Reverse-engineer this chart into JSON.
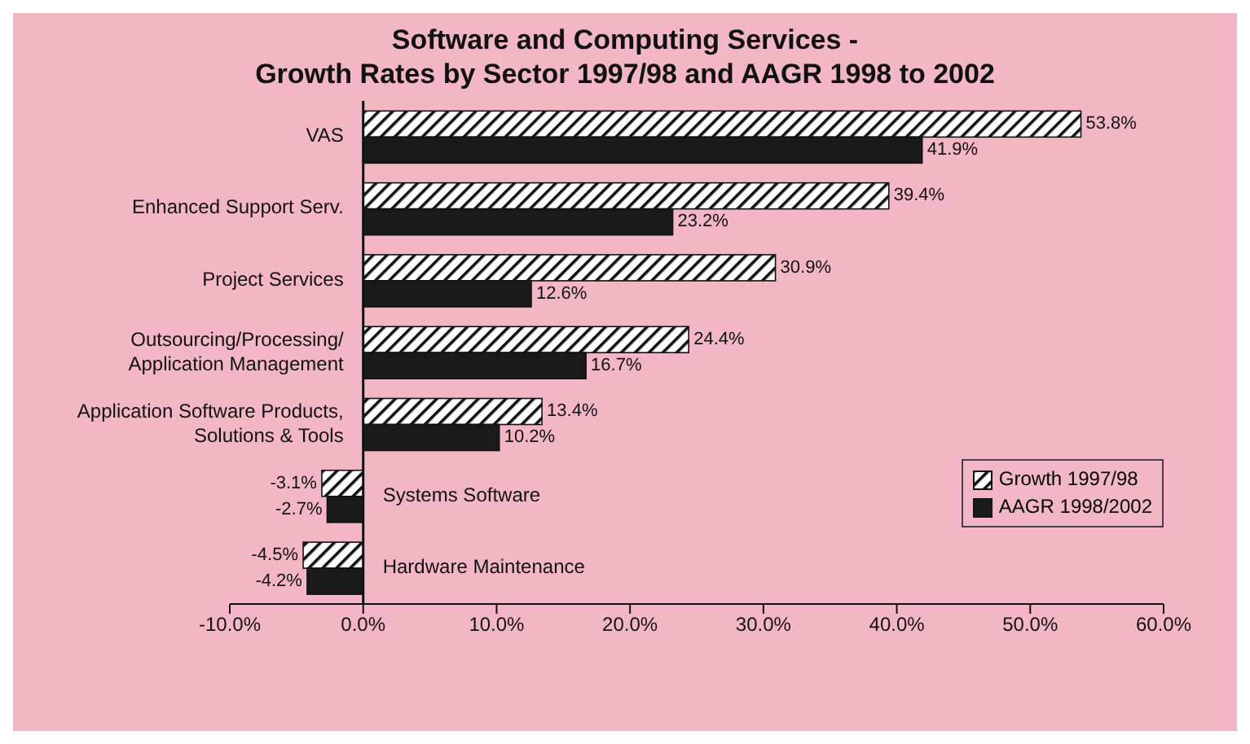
{
  "chart_data": {
    "type": "bar",
    "orientation": "horizontal",
    "title": "Software and Computing Services -\nGrowth Rates by Sector 1997/98 and AAGR 1998 to 2002",
    "categories": [
      "VAS",
      "Enhanced Support Serv.",
      "Project Services",
      "Outsourcing/Processing/\nApplication Management",
      "Application Software Products,\nSolutions & Tools",
      "Systems Software",
      "Hardware Maintenance"
    ],
    "series": [
      {
        "name": "Growth 1997/98",
        "color": "#ffffff",
        "values": [
          53.8,
          39.4,
          30.9,
          24.4,
          13.4,
          -3.1,
          -4.5
        ],
        "value_labels": [
          "53.8%",
          "39.4%",
          "30.9%",
          "24.4%",
          "13.4%",
          "-3.1%",
          "-4.5%"
        ]
      },
      {
        "name": "AAGR 1998/2002",
        "color": "#1a1a1a",
        "values": [
          41.9,
          23.2,
          12.6,
          16.7,
          10.2,
          -2.7,
          -4.2
        ],
        "value_labels": [
          "41.9%",
          "23.2%",
          "12.6%",
          "16.7%",
          "10.2%",
          "-2.7%",
          "-4.2%"
        ]
      }
    ],
    "xlim": [
      -10,
      60
    ],
    "xticks": [
      {
        "value": -10,
        "label": "-10.0%"
      },
      {
        "value": 0,
        "label": "0.0%"
      },
      {
        "value": 10,
        "label": "10.0%"
      },
      {
        "value": 20,
        "label": "20.0%"
      },
      {
        "value": 30,
        "label": "30.0%"
      },
      {
        "value": 40,
        "label": "40.0%"
      },
      {
        "value": 50,
        "label": "50.0%"
      },
      {
        "value": 60,
        "label": "60.0%"
      }
    ],
    "grid": false,
    "legend": "right"
  }
}
